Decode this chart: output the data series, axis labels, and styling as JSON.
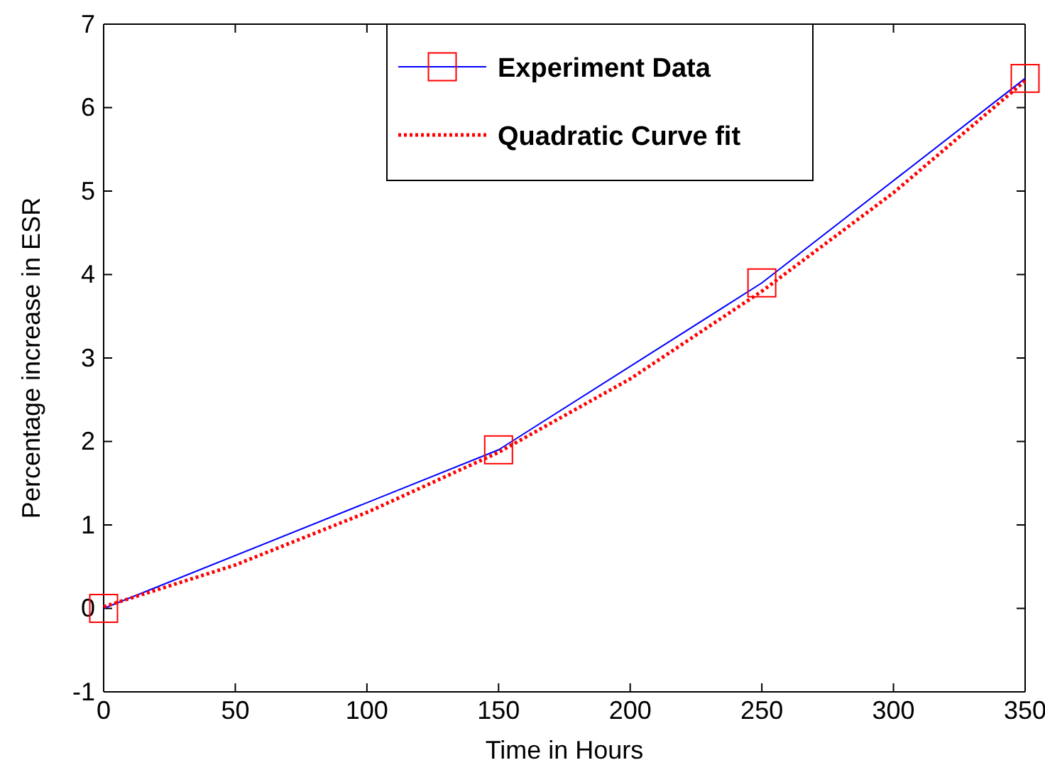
{
  "chart_data": {
    "type": "line",
    "xlabel": "Time in Hours",
    "ylabel": "Percentage increase in ESR",
    "xlim": [
      0,
      350
    ],
    "xticks": [
      0,
      50,
      100,
      150,
      200,
      250,
      300,
      350
    ],
    "ylim": [
      -1,
      7
    ],
    "yticks": [
      -1,
      0,
      1,
      2,
      3,
      4,
      5,
      6,
      7
    ],
    "grid": false,
    "legend": "top",
    "series": [
      {
        "name": "Experiment Data",
        "color": "#0000ff",
        "colors": [
          "#ff0000",
          "#ff0000",
          "#ff0000",
          "#ff0000"
        ],
        "marker": "square",
        "line_style": "solid",
        "x": [
          0,
          150,
          250,
          350
        ],
        "values": [
          0,
          1.9,
          3.9,
          6.35
        ]
      },
      {
        "name": "Quadratic Curve fit",
        "color": "#ff0000",
        "marker": "none",
        "line_style": "dotted",
        "x": [
          0,
          50,
          100,
          150,
          200,
          250,
          300,
          350
        ],
        "values": [
          0.02,
          0.52,
          1.15,
          1.87,
          2.75,
          3.8,
          4.98,
          6.32
        ]
      }
    ]
  }
}
